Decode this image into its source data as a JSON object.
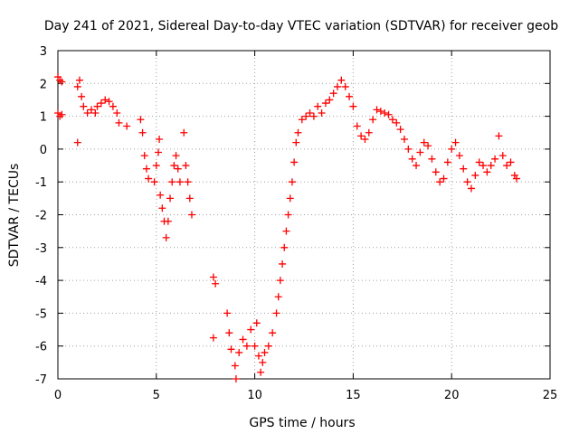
{
  "chart_data": {
    "type": "scatter",
    "title": "Day 241 of 2021, Sidereal Day-to-day VTEC variation (SDTVAR) for receiver geob",
    "xlabel": "GPS time / hours",
    "ylabel": "SDTVAR / TECUs",
    "xlim": [
      0,
      25
    ],
    "ylim": [
      -7,
      3
    ],
    "xticks": [
      0,
      5,
      10,
      15,
      20,
      25
    ],
    "yticks": [
      -7,
      -6,
      -5,
      -4,
      -3,
      -2,
      -1,
      0,
      1,
      2,
      3
    ],
    "grid": true,
    "marker": "+",
    "color": "#ff0000",
    "series": [
      {
        "name": "SDTVAR",
        "points": [
          [
            0.0,
            2.2
          ],
          [
            0.1,
            2.1
          ],
          [
            0.2,
            2.05
          ],
          [
            0.0,
            1.1
          ],
          [
            0.1,
            1.0
          ],
          [
            0.2,
            1.05
          ],
          [
            1.0,
            0.2
          ],
          [
            1.0,
            1.9
          ],
          [
            1.1,
            2.1
          ],
          [
            1.2,
            1.6
          ],
          [
            1.3,
            1.3
          ],
          [
            1.5,
            1.1
          ],
          [
            1.7,
            1.2
          ],
          [
            1.9,
            1.1
          ],
          [
            2.0,
            1.3
          ],
          [
            2.2,
            1.4
          ],
          [
            2.4,
            1.5
          ],
          [
            2.6,
            1.45
          ],
          [
            2.8,
            1.3
          ],
          [
            3.0,
            1.1
          ],
          [
            3.1,
            0.8
          ],
          [
            3.5,
            0.7
          ],
          [
            4.2,
            0.9
          ],
          [
            4.3,
            0.5
          ],
          [
            4.4,
            -0.2
          ],
          [
            4.5,
            -0.6
          ],
          [
            4.6,
            -0.9
          ],
          [
            4.9,
            -1.0
          ],
          [
            5.0,
            -0.5
          ],
          [
            5.1,
            -0.1
          ],
          [
            5.15,
            0.3
          ],
          [
            5.2,
            -1.4
          ],
          [
            5.3,
            -1.8
          ],
          [
            5.4,
            -2.2
          ],
          [
            5.5,
            -2.7
          ],
          [
            5.6,
            -2.2
          ],
          [
            5.7,
            -1.5
          ],
          [
            5.8,
            -1.0
          ],
          [
            5.9,
            -0.5
          ],
          [
            6.0,
            -0.2
          ],
          [
            6.1,
            -0.6
          ],
          [
            6.2,
            -1.0
          ],
          [
            6.4,
            0.5
          ],
          [
            6.5,
            -0.5
          ],
          [
            6.6,
            -1.0
          ],
          [
            6.7,
            -1.5
          ],
          [
            6.8,
            -2.0
          ],
          [
            7.9,
            -3.9
          ],
          [
            8.0,
            -4.1
          ],
          [
            7.9,
            -5.75
          ],
          [
            8.6,
            -5.0
          ],
          [
            8.7,
            -5.6
          ],
          [
            8.8,
            -6.1
          ],
          [
            9.0,
            -6.6
          ],
          [
            9.05,
            -7.0
          ],
          [
            9.2,
            -6.2
          ],
          [
            9.4,
            -5.8
          ],
          [
            9.6,
            -6.0
          ],
          [
            9.8,
            -5.5
          ],
          [
            10.0,
            -6.0
          ],
          [
            10.1,
            -5.3
          ],
          [
            10.2,
            -6.3
          ],
          [
            10.3,
            -6.8
          ],
          [
            10.4,
            -6.5
          ],
          [
            10.5,
            -6.2
          ],
          [
            10.7,
            -6.0
          ],
          [
            10.9,
            -5.6
          ],
          [
            11.1,
            -5.0
          ],
          [
            11.2,
            -4.5
          ],
          [
            11.3,
            -4.0
          ],
          [
            11.4,
            -3.5
          ],
          [
            11.5,
            -3.0
          ],
          [
            11.6,
            -2.5
          ],
          [
            11.7,
            -2.0
          ],
          [
            11.8,
            -1.5
          ],
          [
            11.9,
            -1.0
          ],
          [
            12.0,
            -0.4
          ],
          [
            12.1,
            0.2
          ],
          [
            12.2,
            0.5
          ],
          [
            12.4,
            0.9
          ],
          [
            12.6,
            1.0
          ],
          [
            12.8,
            1.1
          ],
          [
            13.0,
            1.0
          ],
          [
            13.2,
            1.3
          ],
          [
            13.4,
            1.1
          ],
          [
            13.6,
            1.4
          ],
          [
            13.8,
            1.5
          ],
          [
            14.0,
            1.7
          ],
          [
            14.2,
            1.9
          ],
          [
            14.4,
            2.1
          ],
          [
            14.6,
            1.9
          ],
          [
            14.8,
            1.6
          ],
          [
            15.0,
            1.3
          ],
          [
            15.2,
            0.7
          ],
          [
            15.4,
            0.4
          ],
          [
            15.6,
            0.3
          ],
          [
            15.8,
            0.5
          ],
          [
            16.0,
            0.9
          ],
          [
            16.2,
            1.2
          ],
          [
            16.4,
            1.15
          ],
          [
            16.6,
            1.1
          ],
          [
            16.8,
            1.05
          ],
          [
            17.0,
            0.9
          ],
          [
            17.2,
            0.8
          ],
          [
            17.4,
            0.6
          ],
          [
            17.6,
            0.3
          ],
          [
            17.8,
            0.0
          ],
          [
            18.0,
            -0.3
          ],
          [
            18.2,
            -0.5
          ],
          [
            18.4,
            -0.1
          ],
          [
            18.6,
            0.2
          ],
          [
            18.8,
            0.1
          ],
          [
            19.0,
            -0.3
          ],
          [
            19.2,
            -0.7
          ],
          [
            19.4,
            -1.0
          ],
          [
            19.6,
            -0.9
          ],
          [
            19.8,
            -0.4
          ],
          [
            20.0,
            0.0
          ],
          [
            20.2,
            0.2
          ],
          [
            20.4,
            -0.2
          ],
          [
            20.6,
            -0.6
          ],
          [
            20.8,
            -1.0
          ],
          [
            21.0,
            -1.2
          ],
          [
            21.2,
            -0.8
          ],
          [
            21.4,
            -0.4
          ],
          [
            21.6,
            -0.5
          ],
          [
            21.8,
            -0.7
          ],
          [
            22.0,
            -0.5
          ],
          [
            22.2,
            -0.3
          ],
          [
            22.4,
            0.4
          ],
          [
            22.6,
            -0.2
          ],
          [
            22.8,
            -0.5
          ],
          [
            23.0,
            -0.4
          ],
          [
            23.2,
            -0.8
          ],
          [
            23.3,
            -0.9
          ]
        ]
      }
    ]
  }
}
